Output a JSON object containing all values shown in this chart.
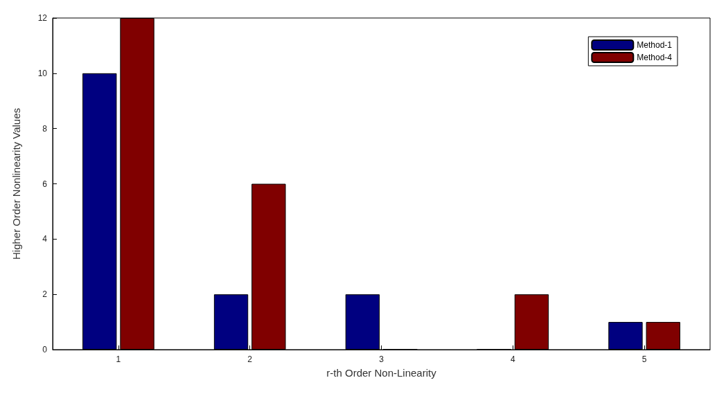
{
  "chart_data": {
    "type": "bar",
    "xlabel": "r-th Order Non-Linearity",
    "ylabel": "Higher Order Nonlinearity Values",
    "categories": [
      "1",
      "2",
      "3",
      "4",
      "5"
    ],
    "series": [
      {
        "name": "Method-1",
        "color": "#000080",
        "values": [
          10,
          2,
          2,
          0,
          1
        ]
      },
      {
        "name": "Method-4",
        "color": "#800000",
        "values": [
          12,
          6,
          0,
          2,
          1
        ]
      }
    ],
    "ylim": [
      0,
      12
    ],
    "yticks": [
      0,
      2,
      4,
      6,
      8,
      10,
      12
    ],
    "grid": false,
    "legend": "top right"
  }
}
